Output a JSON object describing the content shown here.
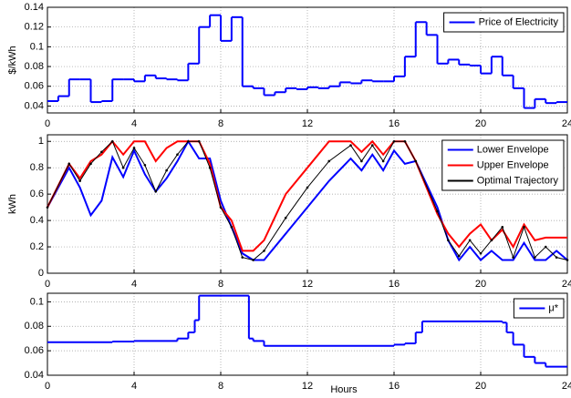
{
  "chart_data": [
    {
      "type": "line",
      "step": true,
      "ylabel": "$/kWh",
      "xlim": [
        0,
        24
      ],
      "ylim": [
        0.033,
        0.14
      ],
      "xticks": [
        0,
        4,
        8,
        12,
        16,
        20,
        24
      ],
      "yticks": [
        0.04,
        0.06,
        0.08,
        0.1,
        0.12,
        0.14
      ],
      "grid": true,
      "legend": "upper right",
      "x": [
        0,
        0.5,
        1,
        1.5,
        2,
        2.5,
        3,
        3.5,
        4,
        4.5,
        5,
        5.5,
        6,
        6.5,
        7,
        7.5,
        8,
        8.5,
        9,
        9.5,
        10,
        10.5,
        11,
        11.5,
        12,
        12.5,
        13,
        13.5,
        14,
        14.5,
        15,
        15.5,
        16,
        16.5,
        17,
        17.5,
        18,
        18.5,
        19,
        19.5,
        20,
        20.5,
        21,
        21.5,
        22,
        22.5,
        23,
        23.5
      ],
      "series": [
        {
          "name": "Price of Electricity",
          "color": "#0000ff",
          "values": [
            0.045,
            0.05,
            0.067,
            0.067,
            0.044,
            0.045,
            0.067,
            0.067,
            0.065,
            0.071,
            0.068,
            0.067,
            0.066,
            0.083,
            0.12,
            0.132,
            0.106,
            0.13,
            0.06,
            0.058,
            0.051,
            0.054,
            0.058,
            0.057,
            0.059,
            0.058,
            0.06,
            0.064,
            0.063,
            0.066,
            0.065,
            0.065,
            0.07,
            0.09,
            0.125,
            0.112,
            0.083,
            0.087,
            0.082,
            0.081,
            0.073,
            0.09,
            0.071,
            0.058,
            0.038,
            0.047,
            0.043,
            0.044
          ]
        }
      ]
    },
    {
      "type": "line",
      "step": false,
      "ylabel": "kWh",
      "xlim": [
        0,
        24
      ],
      "ylim": [
        0,
        1.05
      ],
      "xticks": [
        0,
        4,
        8,
        12,
        16,
        20,
        24
      ],
      "yticks": [
        0,
        0.2,
        0.4,
        0.6,
        0.8,
        1
      ],
      "grid": true,
      "legend": "upper right",
      "x": [
        0,
        1,
        1.5,
        2,
        2.5,
        3,
        3.5,
        4,
        4.5,
        5,
        5.5,
        6,
        6.5,
        7,
        7.5,
        8,
        8.5,
        9,
        9.5,
        10,
        11,
        12,
        13,
        14,
        14.5,
        15,
        15.5,
        16,
        16.5,
        17,
        18,
        18.5,
        19,
        19.5,
        20,
        20.5,
        21,
        21.5,
        22,
        22.5,
        23,
        23.5,
        24
      ],
      "series": [
        {
          "name": "Lower Envelope",
          "color": "#0000ff",
          "values": [
            0.5,
            0.8,
            0.65,
            0.44,
            0.55,
            0.88,
            0.73,
            0.93,
            0.75,
            0.62,
            0.72,
            0.85,
            1.0,
            0.87,
            0.87,
            0.55,
            0.35,
            0.15,
            0.1,
            0.1,
            0.3,
            0.5,
            0.7,
            0.87,
            0.78,
            0.9,
            0.78,
            0.93,
            0.83,
            0.85,
            0.5,
            0.25,
            0.1,
            0.2,
            0.1,
            0.17,
            0.1,
            0.1,
            0.23,
            0.1,
            0.1,
            0.17,
            0.1
          ]
        },
        {
          "name": "Upper Envelope",
          "color": "#ff0000",
          "values": [
            0.5,
            0.83,
            0.72,
            0.85,
            0.9,
            1.0,
            0.9,
            1.0,
            1.0,
            0.85,
            0.95,
            1.0,
            1.0,
            1.0,
            0.83,
            0.5,
            0.4,
            0.17,
            0.17,
            0.25,
            0.6,
            0.8,
            1.0,
            1.0,
            0.92,
            1.0,
            0.9,
            1.0,
            1.0,
            0.85,
            0.45,
            0.3,
            0.2,
            0.3,
            0.37,
            0.25,
            0.33,
            0.2,
            0.37,
            0.25,
            0.27,
            0.27,
            0.27
          ]
        },
        {
          "name": "Optimal Trajectory",
          "color": "#000000",
          "marker": true,
          "values": [
            0.5,
            0.83,
            0.7,
            0.83,
            0.92,
            1.0,
            0.8,
            0.95,
            0.82,
            0.62,
            0.78,
            0.9,
            1.0,
            1.0,
            0.8,
            0.5,
            0.35,
            0.12,
            0.1,
            0.17,
            0.42,
            0.65,
            0.85,
            0.97,
            0.85,
            0.97,
            0.85,
            1.0,
            1.0,
            0.85,
            0.47,
            0.25,
            0.13,
            0.25,
            0.15,
            0.25,
            0.35,
            0.12,
            0.35,
            0.12,
            0.2,
            0.12,
            0.1
          ]
        }
      ]
    },
    {
      "type": "line",
      "step": true,
      "xlabel": "Hours",
      "xlim": [
        0,
        24
      ],
      "ylim": [
        0.04,
        0.107
      ],
      "xticks": [
        0,
        4,
        8,
        12,
        16,
        20,
        24
      ],
      "yticks": [
        0.04,
        0.06,
        0.08,
        0.1
      ],
      "grid": true,
      "legend": "upper right",
      "x": [
        0,
        3,
        4,
        6,
        6.5,
        6.8,
        7,
        9.3,
        9.5,
        10,
        16,
        16.5,
        17,
        17.3,
        21,
        21.2,
        21.5,
        22,
        22.5,
        23
      ],
      "series": [
        {
          "name": "μ*",
          "color": "#0000ff",
          "values": [
            0.067,
            0.0675,
            0.068,
            0.07,
            0.075,
            0.085,
            0.105,
            0.07,
            0.068,
            0.064,
            0.065,
            0.066,
            0.075,
            0.084,
            0.083,
            0.075,
            0.065,
            0.055,
            0.05,
            0.047
          ]
        }
      ]
    }
  ]
}
